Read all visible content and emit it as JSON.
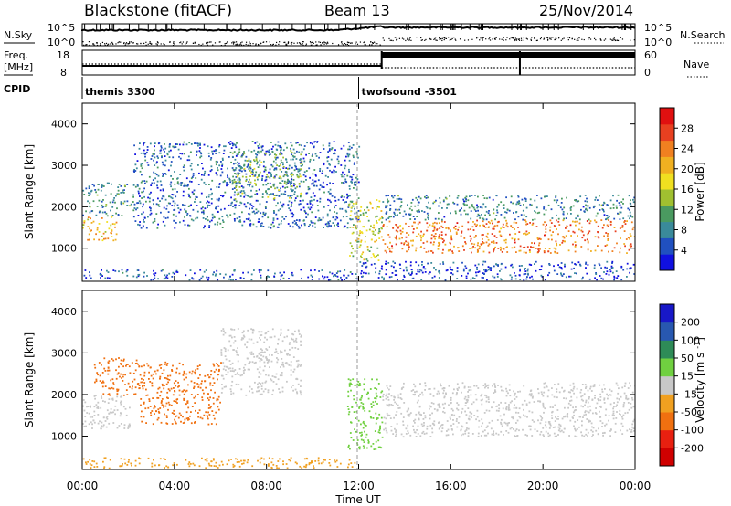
{
  "header": {
    "station": "Blackstone (fitACF)",
    "beam": "Beam 13",
    "date": "25/Nov/2014"
  },
  "strip_labels": {
    "nsky": "N.Sky",
    "freq_line1": "Freq.",
    "freq_line2": "[MHz]",
    "cpid": "CPID",
    "nsearch": "N.Search",
    "nave": "Nave",
    "nsky_top": "10^5",
    "nsky_bottom": "10^0",
    "nsearch_top": "10^5",
    "nsearch_bottom": "10^0",
    "freq_top": "18",
    "freq_bottom": "8",
    "nave_top": "60",
    "nave_bottom": "0"
  },
  "cpid_segments": [
    {
      "label": "themis 3300",
      "start_hour": 0
    },
    {
      "label": "twofsound -3501",
      "start_hour": 12.0
    }
  ],
  "chart_data": [
    {
      "type": "heatmap",
      "panel": "power",
      "title": "",
      "xlabel": "",
      "ylabel": "Slant Range [km]",
      "xlim": [
        0,
        24
      ],
      "ylim": [
        200,
        4500
      ],
      "x_ticks": [
        0,
        4,
        8,
        12,
        16,
        20,
        24
      ],
      "y_ticks": [
        1000,
        2000,
        3000,
        4000
      ],
      "colorbar": {
        "label": "Power [dB]",
        "ticks": [
          4,
          8,
          12,
          16,
          20,
          24,
          28
        ],
        "range": [
          0,
          32
        ],
        "colors": [
          "#1010e0",
          "#2050c0",
          "#3a8a9a",
          "#4a9a60",
          "#a0c030",
          "#f0e020",
          "#f0b020",
          "#f08020",
          "#e84020",
          "#e01010"
        ]
      },
      "regions": [
        {
          "t0": 0.0,
          "t1": 1.5,
          "r0": 1200,
          "r1": 1800,
          "value": 20
        },
        {
          "t0": 0.0,
          "t1": 2.2,
          "r0": 1800,
          "r1": 2600,
          "value": 9
        },
        {
          "t0": 2.2,
          "t1": 12.0,
          "r0": 1500,
          "r1": 3600,
          "value": 6
        },
        {
          "t0": 6.5,
          "t1": 9.5,
          "r0": 2200,
          "r1": 3400,
          "value": 12
        },
        {
          "t0": 0.0,
          "t1": 12.0,
          "r0": 250,
          "r1": 500,
          "value": 5
        },
        {
          "t0": 11.5,
          "t1": 13.0,
          "r0": 700,
          "r1": 2200,
          "value": 16
        },
        {
          "t0": 13.0,
          "t1": 24.0,
          "r0": 900,
          "r1": 1700,
          "value": 24
        },
        {
          "t0": 13.0,
          "t1": 24.0,
          "r0": 1700,
          "r1": 2300,
          "value": 8
        },
        {
          "t0": 12.0,
          "t1": 24.0,
          "r0": 250,
          "r1": 700,
          "value": 4
        }
      ]
    },
    {
      "type": "heatmap",
      "panel": "velocity",
      "title": "",
      "xlabel": "Time UT",
      "ylabel": "Slant Range [km]",
      "xlim": [
        0,
        24
      ],
      "ylim": [
        200,
        4500
      ],
      "x_ticks": [
        0,
        4,
        8,
        12,
        16,
        20,
        24
      ],
      "x_tick_labels": [
        "00:00",
        "04:00",
        "08:00",
        "12:00",
        "16:00",
        "20:00",
        "00:00"
      ],
      "y_ticks": [
        1000,
        2000,
        3000,
        4000
      ],
      "colorbar": {
        "label": "Velocity [m s^-1]",
        "ticks": [
          200,
          100,
          50,
          15,
          -15,
          -50,
          -100,
          -200
        ],
        "colors": [
          "#1818c8",
          "#2858b0",
          "#2e8b57",
          "#70d040",
          "#c8c8c8",
          "#f0a020",
          "#f07010",
          "#e82010",
          "#d00000"
        ]
      },
      "regions": [
        {
          "t0": 0.0,
          "t1": 2.2,
          "r0": 1200,
          "r1": 2000,
          "value": 0
        },
        {
          "t0": 0.5,
          "t1": 2.5,
          "r0": 2000,
          "r1": 2900,
          "value": -60
        },
        {
          "t0": 2.5,
          "t1": 6.0,
          "r0": 1300,
          "r1": 2800,
          "value": -90
        },
        {
          "t0": 6.0,
          "t1": 9.5,
          "r0": 2000,
          "r1": 3600,
          "value": 0
        },
        {
          "t0": 0.0,
          "t1": 12.0,
          "r0": 250,
          "r1": 500,
          "value": -30
        },
        {
          "t0": 11.5,
          "t1": 13.0,
          "r0": 700,
          "r1": 2400,
          "value": 40
        },
        {
          "t0": 13.0,
          "t1": 24.0,
          "r0": 1000,
          "r1": 2300,
          "value": 0
        }
      ]
    }
  ]
}
